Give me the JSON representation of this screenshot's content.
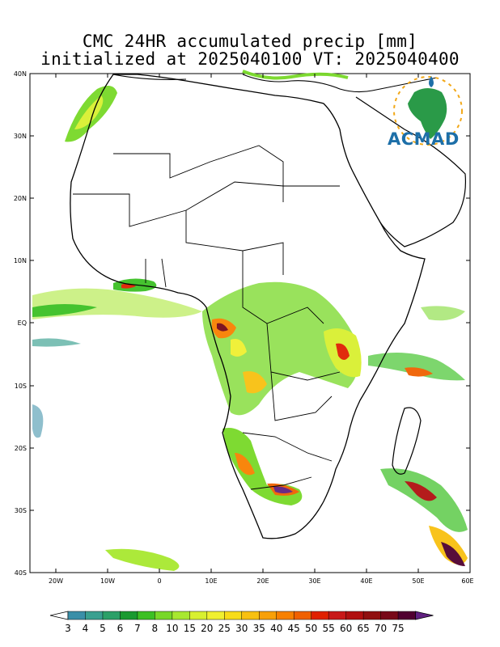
{
  "title": {
    "line1": "CMC 24HR accumulated precip [mm]",
    "line2": "initialized at 2025040100 VT: 2025040400"
  },
  "logo": {
    "text": "ACMAD",
    "icon": "acmad-africa-logo-icon"
  },
  "lat_labels": [
    "40N",
    "30N",
    "20N",
    "10N",
    "EQ",
    "10S",
    "20S",
    "30S",
    "40S"
  ],
  "lon_labels": [
    "20W",
    "10W",
    "0",
    "10E",
    "20E",
    "30E",
    "40E",
    "50E",
    "60E"
  ],
  "colorbar": {
    "labels": [
      "3",
      "4",
      "5",
      "6",
      "7",
      "8",
      "10",
      "15",
      "20",
      "25",
      "30",
      "35",
      "40",
      "45",
      "50",
      "55",
      "60",
      "65",
      "70",
      "75"
    ],
    "colors": [
      "#3a8fa8",
      "#3aa090",
      "#2ca068",
      "#1a9a30",
      "#3cc024",
      "#78d828",
      "#a8e830",
      "#d8f030",
      "#f0f030",
      "#f8dc18",
      "#f8c010",
      "#f8a008",
      "#f88000",
      "#f06000",
      "#e02000",
      "#c81818",
      "#b01010",
      "#901010",
      "#780818",
      "#500030",
      "#602080"
    ],
    "under_color": "#ffffff",
    "over_color": "#602080"
  }
}
